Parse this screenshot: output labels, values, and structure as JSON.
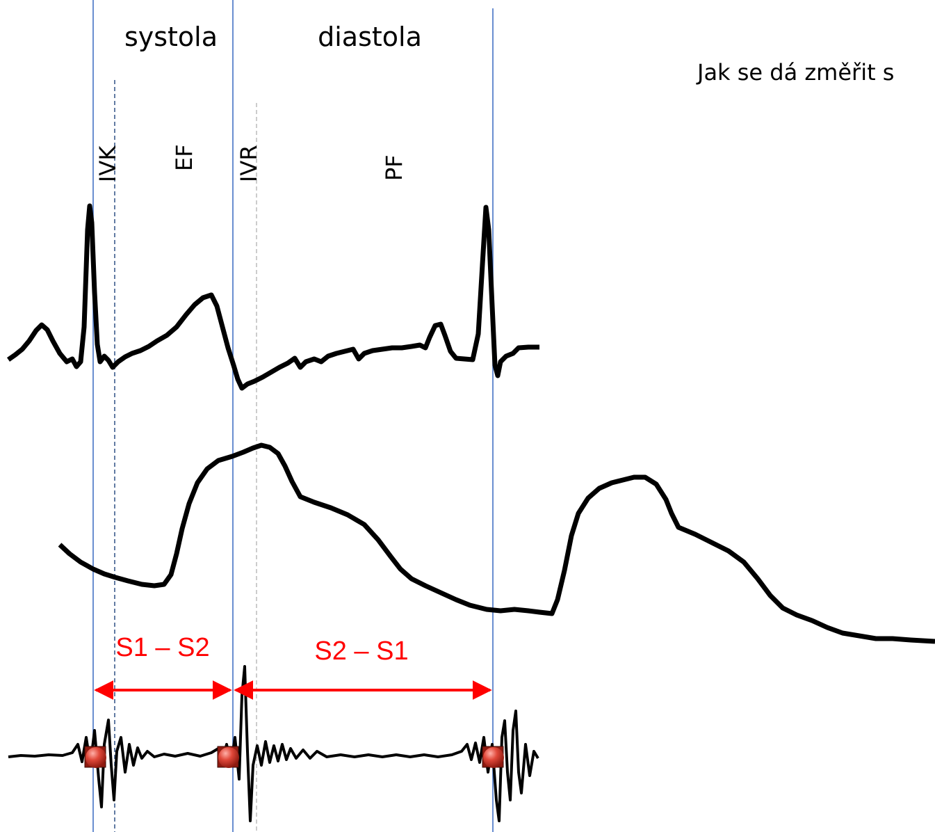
{
  "phases": {
    "systole": "systola",
    "diastole": "diastola"
  },
  "sub_phases": {
    "ivk": "IVK",
    "ef": "EF",
    "ivr": "IVR",
    "pf": "PF"
  },
  "question": "Jak se dá změřit s",
  "intervals": {
    "s1_s2": "S1 – S2",
    "s2_s1": "S2 – S1"
  },
  "colors": {
    "marker_line": "#4472c4",
    "dashed_line": "#3a5a8c",
    "dashed_light": "#bfbfbf",
    "arrow": "#ff0000",
    "trace": "#000000",
    "sound_marker": "#c0392b"
  },
  "traces": [
    "ecg-trace",
    "pressure-trace",
    "phonocardiogram-trace"
  ]
}
